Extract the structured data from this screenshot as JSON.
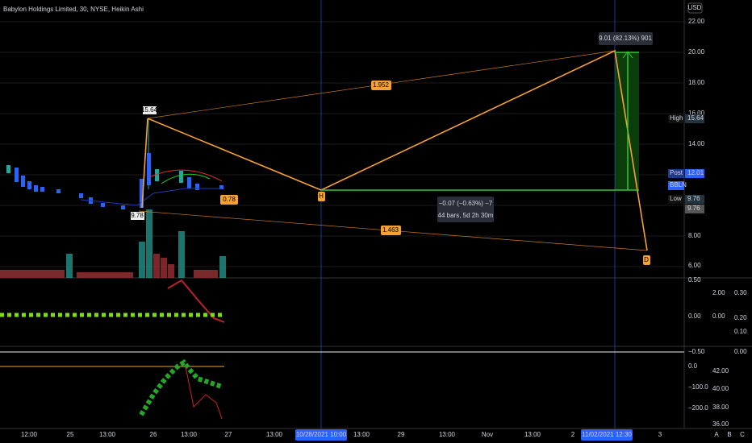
{
  "header": {
    "title": "Babylon Holdings Limited, 30, NYSE, Heikin Ashi",
    "currency": "USD"
  },
  "price_axis": [
    "22.00",
    "20.00",
    "18.00",
    "16.00",
    "14.00",
    "8.00",
    "6.00"
  ],
  "price_labels": {
    "high": {
      "label": "High",
      "value": "15.64"
    },
    "post": {
      "label": "Post",
      "value": "12.01"
    },
    "symbol": "BBLN",
    "low": {
      "label": "Low",
      "value": "9.76"
    },
    "last": "9.76"
  },
  "time_axis": [
    "12:00",
    "25",
    "13:00",
    "26",
    "13:00",
    "27",
    "13:00",
    "10/28/2021 10:00",
    "13:00",
    "29",
    "13:00",
    "Nov",
    "13:00",
    "2",
    "11/02/2021 12:30",
    "3"
  ],
  "annotations": {
    "high_point": "15.64",
    "low_point": "9.78",
    "retrace_a": "0.78",
    "ratio_top": "1.952",
    "ratio_bottom": "1.463",
    "measure_up": "9.01 (82.13%) 901",
    "measure_range": "−0.07 (−0.63%) −7",
    "measure_bars": "44 bars, 5d 2h 30m",
    "point_h": "H",
    "point_d": "D"
  },
  "pane2_axis": {
    "left": [
      "0.50",
      "0.00",
      "−0.50"
    ],
    "right1": [
      "2.00",
      "0.00"
    ],
    "right2": [
      "0.30",
      "0.20",
      "0.10",
      "0.00"
    ]
  },
  "pane3_axis": {
    "left": [
      "0.0",
      "−100.0",
      "−200.0"
    ],
    "right": [
      "42.00",
      "40.00",
      "38.00",
      "36.00"
    ]
  },
  "tabs": [
    "A",
    "B",
    "C"
  ]
}
